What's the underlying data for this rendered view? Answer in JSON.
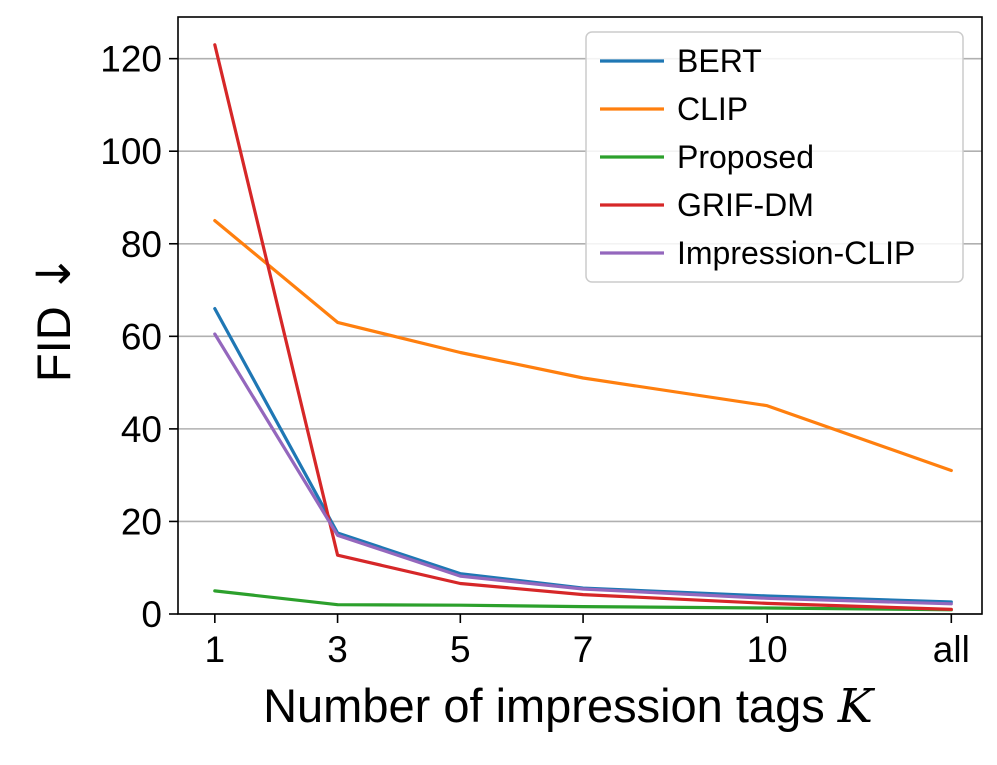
{
  "chart_data": {
    "type": "line",
    "title": "",
    "xlabel": "Number of impression tags",
    "xlabel_var": "K",
    "ylabel": "FID",
    "ylabel_arrow": "↓",
    "categories": [
      "1",
      "3",
      "5",
      "7",
      "10",
      "all"
    ],
    "x_positions": [
      1,
      3,
      5,
      7,
      10,
      13
    ],
    "xlim": [
      0.4,
      13.5
    ],
    "ylim": [
      0,
      129
    ],
    "yticks": [
      0,
      20,
      40,
      60,
      80,
      100,
      120
    ],
    "grid": "horizontal",
    "legend_position": "top-right",
    "series": [
      {
        "name": "BERT",
        "color": "#1f77b4",
        "values": [
          66,
          17.5,
          8.7,
          5.6,
          3.9,
          2.6
        ]
      },
      {
        "name": "CLIP",
        "color": "#ff7f0e",
        "values": [
          85,
          63,
          56.5,
          51,
          45,
          31
        ]
      },
      {
        "name": "Proposed",
        "color": "#2ca02c",
        "values": [
          5,
          2,
          1.9,
          1.6,
          1.3,
          0.9
        ]
      },
      {
        "name": "GRIF-DM",
        "color": "#d62728",
        "values": [
          123,
          12.7,
          6.6,
          4.2,
          2.3,
          1.0
        ]
      },
      {
        "name": "Impression-CLIP",
        "color": "#9467bd",
        "values": [
          60.5,
          17,
          8.2,
          5.4,
          3.4,
          2.2
        ]
      }
    ]
  }
}
